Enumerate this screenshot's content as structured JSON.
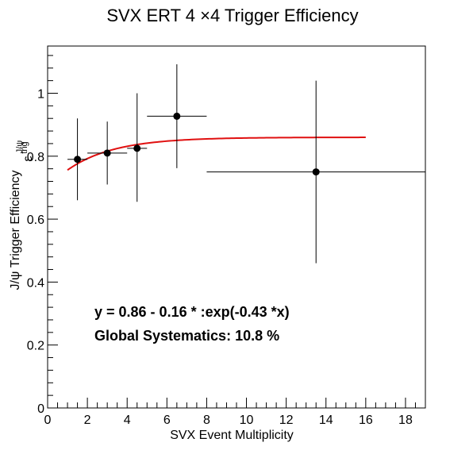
{
  "chart_data": {
    "type": "scatter",
    "title": "SVX ERT 4 ×4 Trigger Efficiency",
    "xlabel": "SVX Event Multiplicity",
    "ylabel": "J/ψ Trigger Efficiency",
    "ylabel_symbol": "ε",
    "ylabel_symbol_sup": "J/ψ",
    "ylabel_symbol_sub": "trig",
    "xlim": [
      0,
      19
    ],
    "ylim": [
      0,
      1.15
    ],
    "x_ticks": [
      "0",
      "2",
      "4",
      "6",
      "8",
      "10",
      "12",
      "14",
      "16",
      "18"
    ],
    "y_ticks": [
      "0",
      "0.2",
      "0.4",
      "0.6",
      "0.8",
      "1"
    ],
    "points": [
      {
        "x": 1.5,
        "y": 0.79,
        "xerr": 0.5,
        "yerr_low": 0.13,
        "yerr_high": 0.13
      },
      {
        "x": 3.0,
        "y": 0.81,
        "xerr": 1.0,
        "yerr_low": 0.1,
        "yerr_high": 0.1
      },
      {
        "x": 4.5,
        "y": 0.825,
        "xerr": 0.5,
        "yerr_low": 0.17,
        "yerr_high": 0.175
      },
      {
        "x": 6.5,
        "y": 0.927,
        "xerr": 1.5,
        "yerr_low": 0.165,
        "yerr_high": 0.165
      },
      {
        "x": 13.5,
        "y": 0.75,
        "xerr": 5.5,
        "yerr_low": 0.29,
        "yerr_high": 0.29
      }
    ],
    "fit": {
      "a": 0.86,
      "b": 0.16,
      "c": 0.43,
      "x_range": [
        1,
        16
      ],
      "color": "#e01010"
    },
    "marker_color": "#000000",
    "annotations": [
      "y = 0.86 - 0.16  * :exp(-0.43  *x)",
      "Global Systematics: 10.8 %"
    ]
  }
}
